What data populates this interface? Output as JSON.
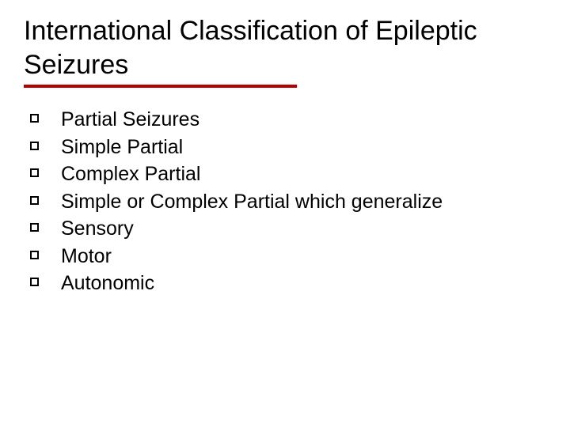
{
  "slide": {
    "title": "International Classification of Epileptic Seizures",
    "title_fontsize": 34,
    "title_fontweight": "normal",
    "title_color": "#000000",
    "underline_color": "#b30000",
    "underline_width": 345,
    "body_fontsize": 25,
    "body_color": "#000000",
    "bullet_marker_border": "#000000",
    "background_color": "#ffffff",
    "items": [
      "Partial Seizures",
      "Simple Partial",
      "Complex Partial",
      "Simple or Complex Partial which generalize",
      "Sensory",
      "Motor",
      "Autonomic"
    ]
  }
}
